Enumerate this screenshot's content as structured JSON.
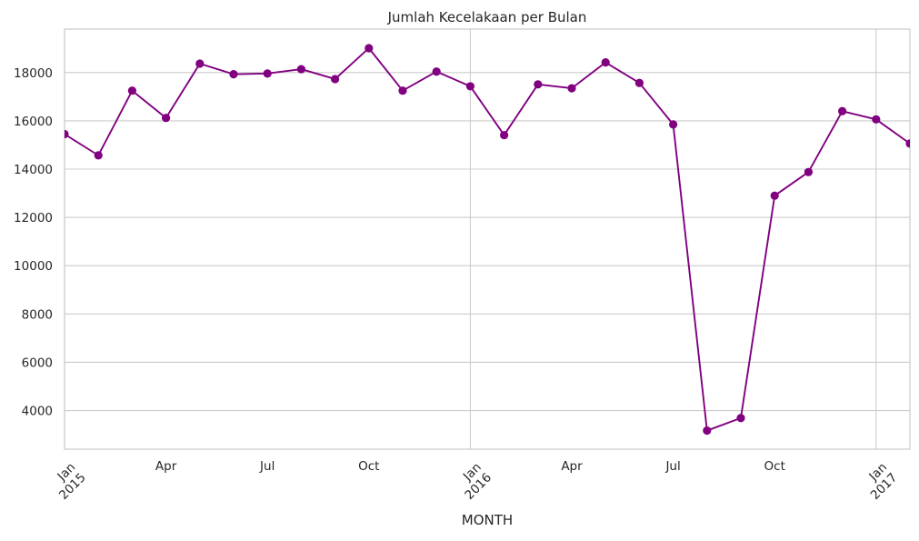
{
  "chart_data": {
    "type": "line",
    "title": "Jumlah Kecelakaan per Bulan",
    "xlabel": "MONTH",
    "ylabel": "",
    "ylim": [
      2400,
      19800
    ],
    "xlim": [
      "2015-01",
      "2017-02"
    ],
    "grid": true,
    "legend": "none",
    "line_color": "#800080",
    "marker": "circle",
    "y_ticks": [
      "4000",
      "6000",
      "8000",
      "10000",
      "12000",
      "14000",
      "16000",
      "18000"
    ],
    "x_ticks": [
      {
        "date": "2015-01",
        "label": "Jan",
        "sublabel": "2015"
      },
      {
        "date": "2015-04",
        "label": "Apr",
        "sublabel": ""
      },
      {
        "date": "2015-07",
        "label": "Jul",
        "sublabel": ""
      },
      {
        "date": "2015-10",
        "label": "Oct",
        "sublabel": ""
      },
      {
        "date": "2016-01",
        "label": "Jan",
        "sublabel": "2016"
      },
      {
        "date": "2016-04",
        "label": "Apr",
        "sublabel": ""
      },
      {
        "date": "2016-07",
        "label": "Jul",
        "sublabel": ""
      },
      {
        "date": "2016-10",
        "label": "Oct",
        "sublabel": ""
      },
      {
        "date": "2017-01",
        "label": "Jan",
        "sublabel": "2017"
      }
    ],
    "x": [
      "2015-01",
      "2015-02",
      "2015-03",
      "2015-04",
      "2015-05",
      "2015-06",
      "2015-07",
      "2015-08",
      "2015-09",
      "2015-10",
      "2015-11",
      "2015-12",
      "2016-01",
      "2016-02",
      "2016-03",
      "2016-04",
      "2016-05",
      "2016-06",
      "2016-07",
      "2016-08",
      "2016-09",
      "2016-10",
      "2016-11",
      "2016-12",
      "2017-01",
      "2017-02"
    ],
    "values": [
      15450,
      14570,
      17250,
      16120,
      18370,
      17930,
      17960,
      18140,
      17730,
      19010,
      17250,
      18040,
      17430,
      15410,
      17510,
      17350,
      18420,
      17570,
      15850,
      3170,
      3690,
      12900,
      13880,
      16400,
      16060,
      15060
    ]
  }
}
